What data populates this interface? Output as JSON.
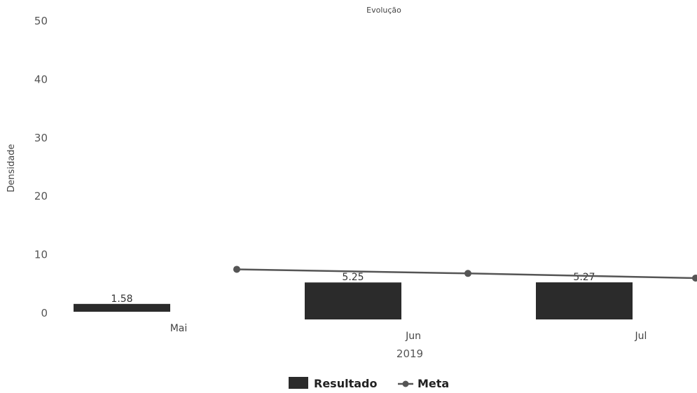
{
  "chart_data": {
    "type": "bar",
    "title": "Evolução",
    "ylabel": "Densidade",
    "xlabel": "2019",
    "ylim": [
      0,
      50
    ],
    "yticks": [
      0,
      10,
      20,
      30,
      40,
      50
    ],
    "categories": [
      "Mai",
      "Jun",
      "Jul"
    ],
    "series": [
      {
        "name": "Resultado",
        "type": "bar",
        "color": "#2b2b2b",
        "values": [
          1.58,
          5.25,
          5.27
        ],
        "labels": [
          "1.58",
          "5.25",
          "5.27"
        ]
      },
      {
        "name": "Meta",
        "type": "line",
        "color": "#555555",
        "values": [
          7.5,
          6.8,
          6.0
        ]
      }
    ],
    "legend_position": "bottom-center",
    "grid": false
  }
}
